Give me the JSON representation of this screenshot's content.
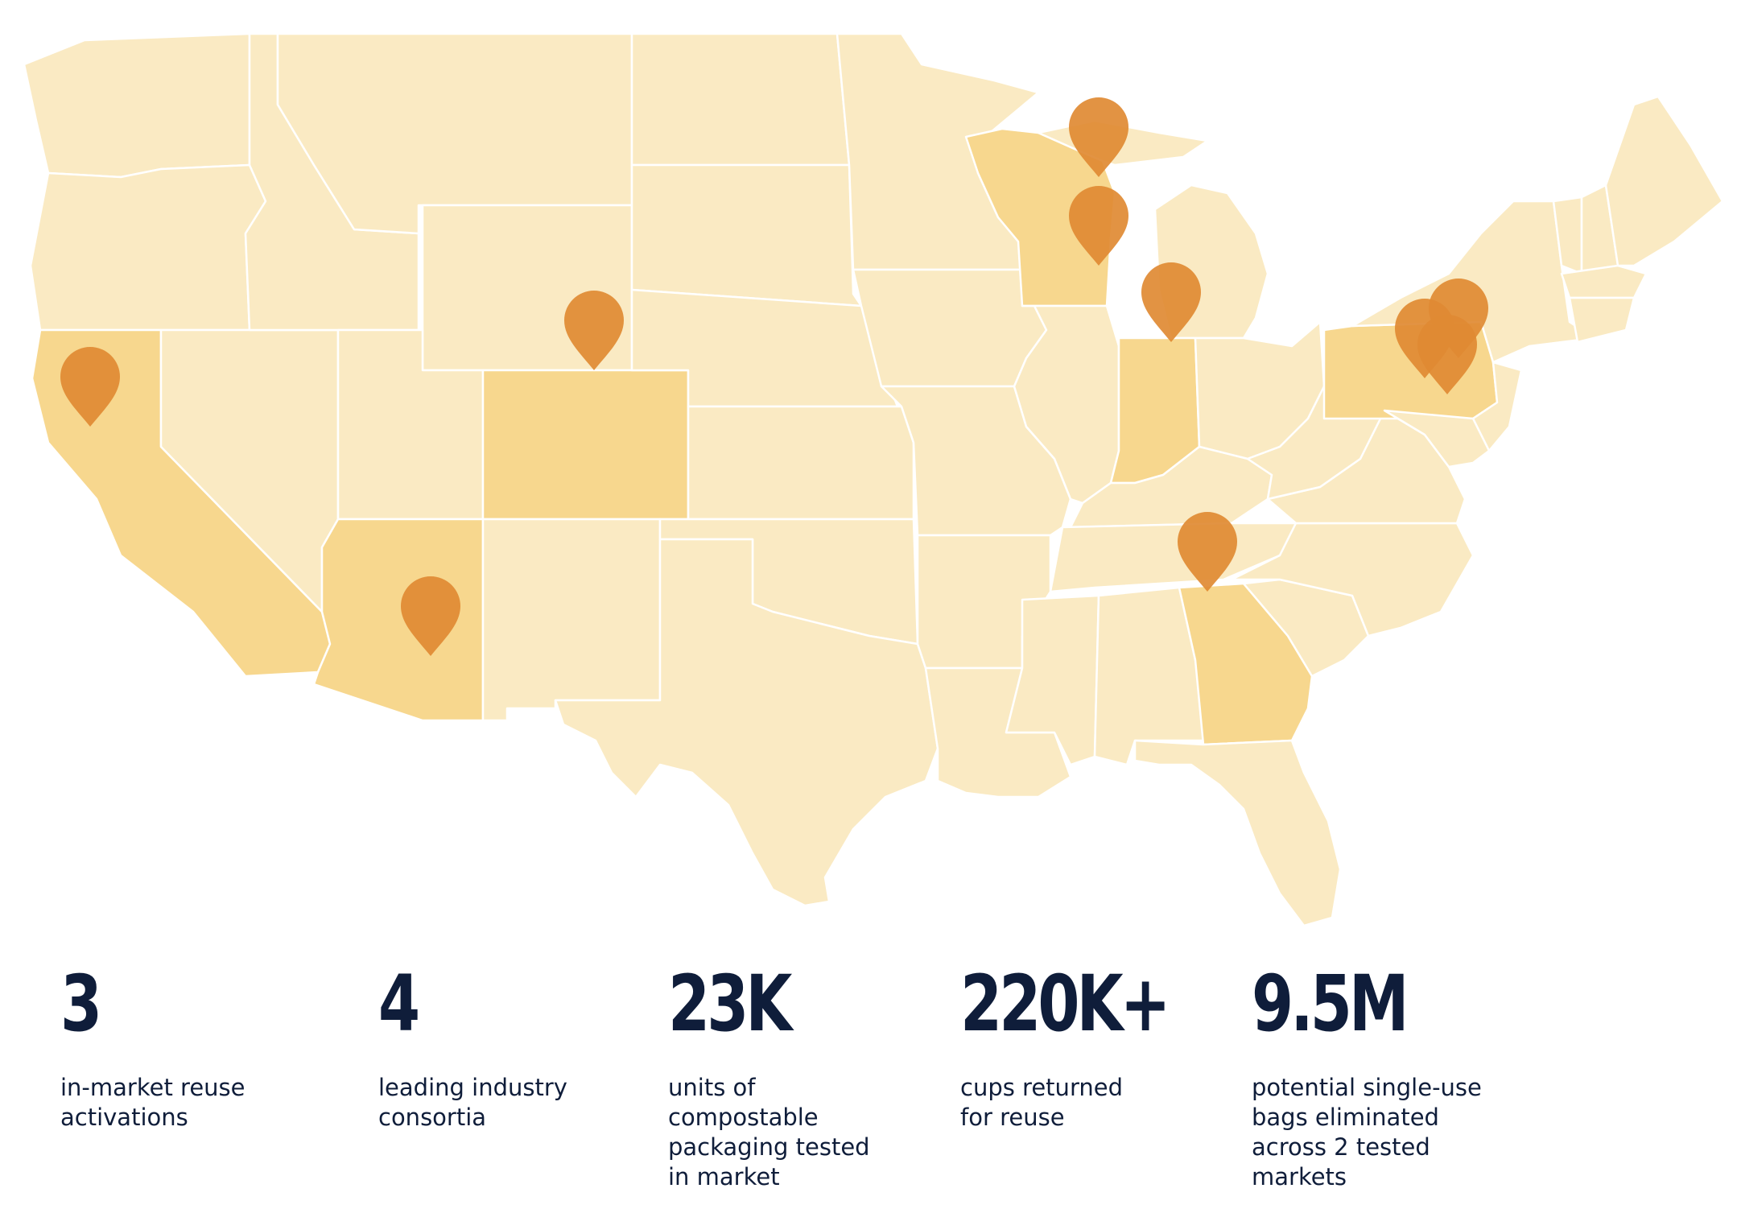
{
  "map": {
    "highlight_color": "#f7d78e",
    "base_color": "#faeac3",
    "pin_color": "#e08a33",
    "highlighted_states": [
      "California",
      "Arizona",
      "Colorado",
      "Wisconsin",
      "Indiana",
      "Georgia",
      "Pennsylvania"
    ],
    "pin_count": 10
  },
  "stats": [
    {
      "value": "3",
      "label": "in-market reuse activations"
    },
    {
      "value": "4",
      "label": "leading industry consortia"
    },
    {
      "value": "23K",
      "label": "units of compostable packaging tested in market"
    },
    {
      "value": "220K+",
      "label": "cups returned for reuse"
    },
    {
      "value": "9.5M",
      "label": "potential single-use bags eliminated across 2 tested markets"
    }
  ],
  "colors": {
    "text": "#0f1d3a"
  }
}
